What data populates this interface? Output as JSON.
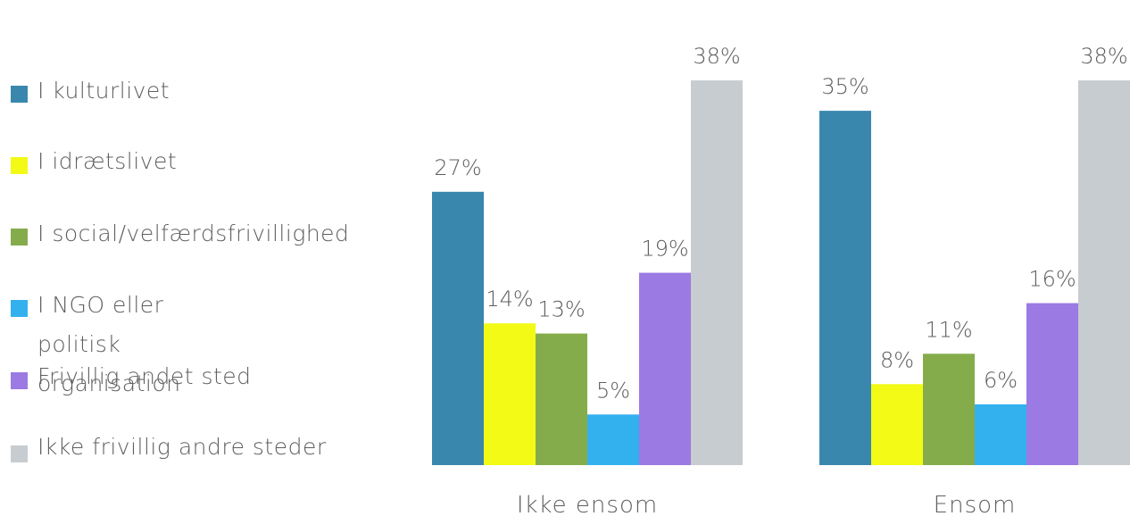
{
  "chart_data": {
    "type": "bar",
    "categories": [
      "Ikke ensom",
      "Ensom"
    ],
    "series": [
      {
        "name": "I kulturlivet",
        "color": "#3a87ad",
        "values": [
          27,
          35
        ]
      },
      {
        "name": "I idrætslivet",
        "color": "#f2fa15",
        "values": [
          14,
          8
        ]
      },
      {
        "name": "I social/velfærdsfrivillighed",
        "color": "#85ac4b",
        "values": [
          13,
          11
        ]
      },
      {
        "name": "I NGO eller politisk organisation",
        "color": "#33b1ef",
        "values": [
          5,
          6
        ]
      },
      {
        "name": "Frivillig andet sted",
        "color": "#9b7ae3",
        "values": [
          19,
          16
        ]
      },
      {
        "name": "Ikke frivillig andre steder",
        "color": "#c7ccd0",
        "values": [
          38,
          38
        ]
      }
    ],
    "data_labels": [
      [
        "27%",
        "14%",
        "13%",
        "5%",
        "19%",
        "38%"
      ],
      [
        "35%",
        "8%",
        "11%",
        "6%",
        "16%",
        "38%"
      ]
    ],
    "ylim": [
      0,
      40
    ],
    "legend_position": "left",
    "grid": false
  },
  "legend": {
    "items": [
      {
        "label": "I kulturlivet",
        "color": "#3a87ad"
      },
      {
        "label": "I idrætslivet",
        "color": "#f2fa15"
      },
      {
        "label": "I social/velfærdsfrivillighed",
        "color": "#85ac4b"
      },
      {
        "label": "I NGO eller politisk\norganisation",
        "color": "#33b1ef"
      },
      {
        "label": "Frivillig andet sted",
        "color": "#9b7ae3"
      },
      {
        "label": "Ikke frivillig andre steder",
        "color": "#c7ccd0"
      }
    ]
  }
}
